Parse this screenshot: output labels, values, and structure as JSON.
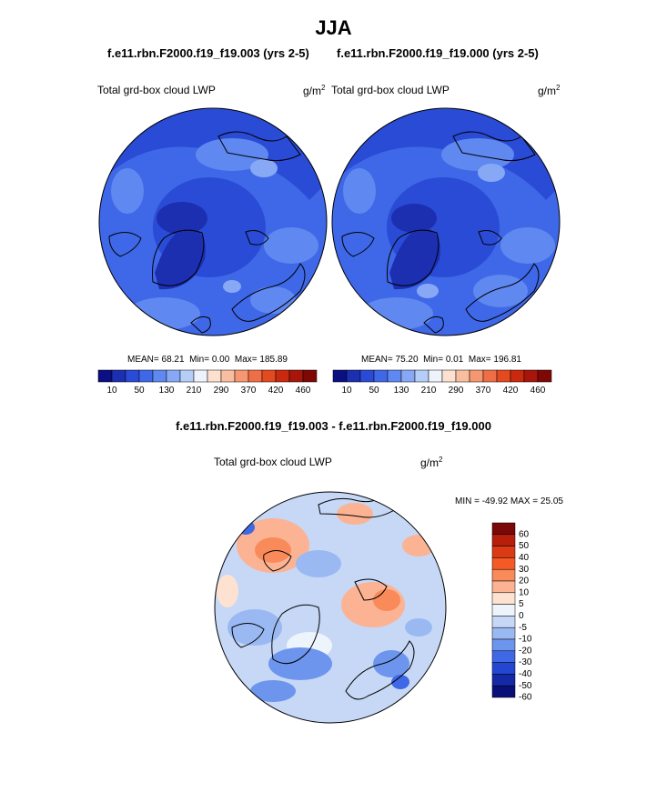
{
  "title": "JJA",
  "panels": [
    {
      "case_title": "f.e11.rbn.F2000.f19_f19.003 (yrs 2-5)",
      "variable": "Total grd-box cloud LWP",
      "units": "g/m",
      "units_exp": "2",
      "stats": {
        "mean_label": "MEAN=",
        "mean": "68.21",
        "min_label": "Min=",
        "min": "0.00",
        "max_label": "Max=",
        "max": "185.89"
      }
    },
    {
      "case_title": "f.e11.rbn.F2000.f19_f19.000 (yrs 2-5)",
      "variable": "Total grd-box cloud LWP",
      "units": "g/m",
      "units_exp": "2",
      "stats": {
        "mean_label": "MEAN=",
        "mean": "75.20",
        "min_label": "Min=",
        "min": "0.01",
        "max_label": "Max=",
        "max": "196.81"
      }
    }
  ],
  "top_colorbar": {
    "colors": [
      "#0a0f82",
      "#1c2fb0",
      "#2a4bd6",
      "#3f68e8",
      "#5f88f0",
      "#87a9f5",
      "#b6cdf8",
      "#eef3fb",
      "#fde0d0",
      "#f9bda0",
      "#f59770",
      "#ef6e45",
      "#e34a1f",
      "#c9290e",
      "#a8150a",
      "#7e0805"
    ],
    "tick_labels": [
      "10",
      "50",
      "130",
      "210",
      "290",
      "370",
      "420",
      "460"
    ]
  },
  "diff": {
    "title": "f.e11.rbn.F2000.f19_f19.003 - f.e11.rbn.F2000.f19_f19.000",
    "variable": "Total grd-box cloud LWP",
    "units": "g/m",
    "units_exp": "2",
    "minmax": "MIN = -49.92 MAX =  25.05"
  },
  "diff_colorbar": {
    "colors": [
      "#7a0806",
      "#b71f0a",
      "#dc3a14",
      "#f55a24",
      "#f98a5a",
      "#fbb394",
      "#fde2d2",
      "#eef4fb",
      "#c6d8f6",
      "#9ab9f2",
      "#6d95ed",
      "#3f68e6",
      "#2447d2",
      "#1429a6",
      "#080f78"
    ],
    "tick_labels": [
      "60",
      "50",
      "40",
      "30",
      "20",
      "10",
      "5",
      "0",
      "-5",
      "-10",
      "-20",
      "-30",
      "-40",
      "-50",
      "-60"
    ]
  }
}
